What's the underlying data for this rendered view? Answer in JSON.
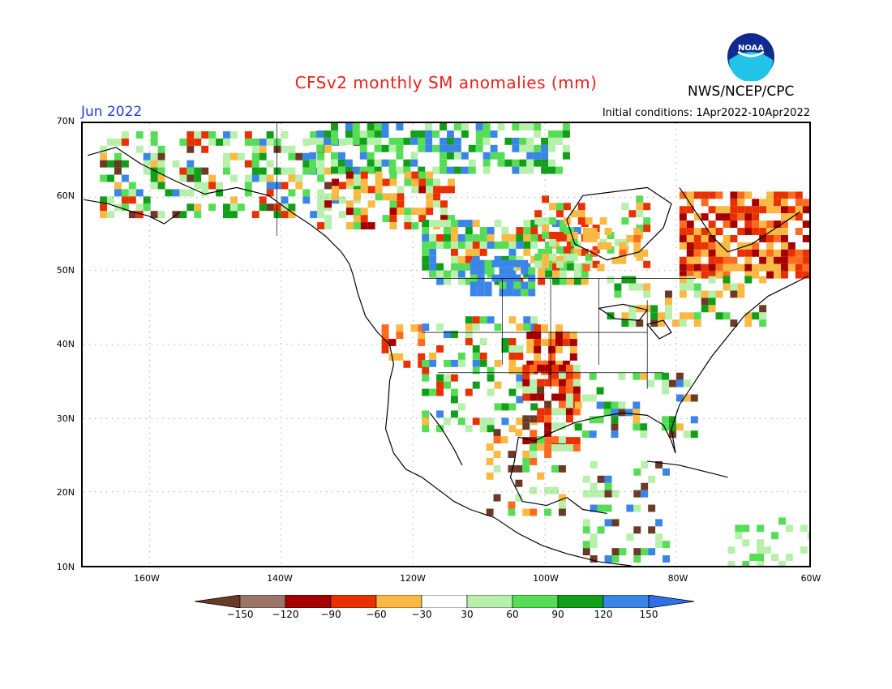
{
  "header": {
    "title": "CFSv2 monthly SM anomalies (mm)",
    "agency": "NWS/NCEP/CPC",
    "month": "Jun 2022",
    "initial_conditions": "Initial conditions: 1Apr2022-10Apr2022",
    "logo_text": "NOAA"
  },
  "axes": {
    "lat_labels": [
      "70N",
      "60N",
      "50N",
      "40N",
      "30N",
      "20N",
      "10N"
    ],
    "lon_labels": [
      "160W",
      "140W",
      "120W",
      "100W",
      "80W",
      "60W"
    ]
  },
  "colorbar": {
    "labels": [
      "-150",
      "-120",
      "-90",
      "-60",
      "-30",
      "30",
      "60",
      "90",
      "120",
      "150"
    ],
    "colors": [
      "#6b3a26",
      "#9a7568",
      "#a50000",
      "#e83000",
      "#ff6a1f",
      "#f9b943",
      "#ffffff",
      "#b6f0aa",
      "#55dd55",
      "#119e19",
      "#3a85e8",
      "#2f6fe8"
    ]
  },
  "map_colors": {
    "land_outline": "#000000",
    "grid": "#8c8c8c"
  }
}
